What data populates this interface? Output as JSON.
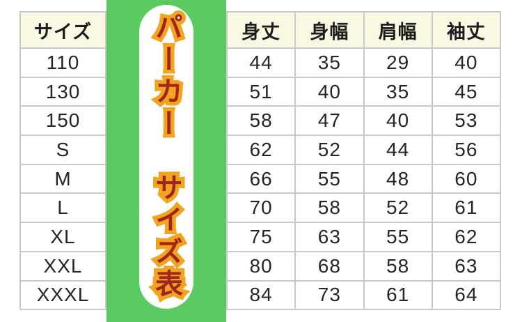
{
  "title": {
    "text": "パーカー　サイズ表",
    "fill_color": "#9e261d",
    "outline_color": "#f2a31f"
  },
  "colors": {
    "banner_green": "#5bca60",
    "header_cream": "#faf7e2",
    "grid_border": "#c9c9c9",
    "cell_white": "#ffffff",
    "text_dark": "#252525"
  },
  "table": {
    "size_header": "サイズ"
  },
  "chart_data": {
    "type": "table",
    "title": "パーカー サイズ表",
    "row_header_label": "サイズ",
    "categories": [
      "110",
      "130",
      "150",
      "S",
      "M",
      "L",
      "XL",
      "XXL",
      "XXXL"
    ],
    "series": [
      {
        "name": "身丈",
        "values": [
          44,
          51,
          58,
          62,
          66,
          70,
          75,
          80,
          84
        ]
      },
      {
        "name": "身幅",
        "values": [
          35,
          40,
          47,
          52,
          55,
          58,
          63,
          68,
          73
        ]
      },
      {
        "name": "肩幅",
        "values": [
          29,
          35,
          40,
          44,
          48,
          52,
          55,
          58,
          61
        ]
      },
      {
        "name": "袖丈",
        "values": [
          40,
          45,
          53,
          56,
          60,
          61,
          62,
          63,
          64
        ]
      }
    ]
  }
}
